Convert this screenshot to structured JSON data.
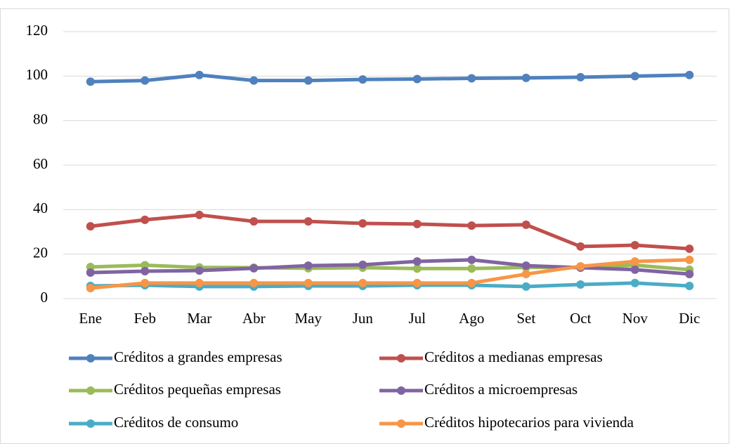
{
  "chart_data": {
    "type": "line",
    "categories": [
      "Ene",
      "Feb",
      "Mar",
      "Abr",
      "May",
      "Jun",
      "Jul",
      "Ago",
      "Set",
      "Oct",
      "Nov",
      "Dic"
    ],
    "series": [
      {
        "name": "Créditos a grandes empresas",
        "color": "#4f81bd",
        "values": [
          97.5,
          98,
          100.5,
          98,
          98,
          98.5,
          98.7,
          99,
          99.2,
          99.5,
          100,
          100.5
        ]
      },
      {
        "name": "Créditos a medianas empresas",
        "color": "#c0504d",
        "values": [
          32.5,
          35.4,
          37.6,
          34.7,
          34.7,
          33.8,
          33.5,
          32.8,
          33.2,
          23.4,
          24,
          22.4
        ]
      },
      {
        "name": "Créditos pequeñas empresas",
        "color": "#9bbb59",
        "values": [
          14.2,
          15,
          14,
          13.9,
          13.6,
          13.9,
          13.5,
          13.5,
          14,
          14,
          15,
          13
        ]
      },
      {
        "name": "Créditos a microempresas",
        "color": "#8064a2",
        "values": [
          11.7,
          12.3,
          12.6,
          13.6,
          14.8,
          15.2,
          16.7,
          17.4,
          14.8,
          13.9,
          13,
          11
        ]
      },
      {
        "name": "Créditos de consumo",
        "color": "#4bacc6",
        "values": [
          5.7,
          6,
          5.4,
          5.4,
          5.7,
          5.7,
          6,
          6,
          5.4,
          6.3,
          7,
          5.7
        ]
      },
      {
        "name": "Créditos hipotecarios para vivienda",
        "color": "#f79646",
        "values": [
          4.7,
          7,
          7,
          7,
          7,
          7,
          7,
          7,
          11,
          14.5,
          16.7,
          17.4
        ]
      }
    ],
    "ylim": [
      0,
      120
    ],
    "yticks": [
      0,
      20,
      40,
      60,
      80,
      100,
      120
    ],
    "grid": true,
    "legend": "bottom"
  }
}
